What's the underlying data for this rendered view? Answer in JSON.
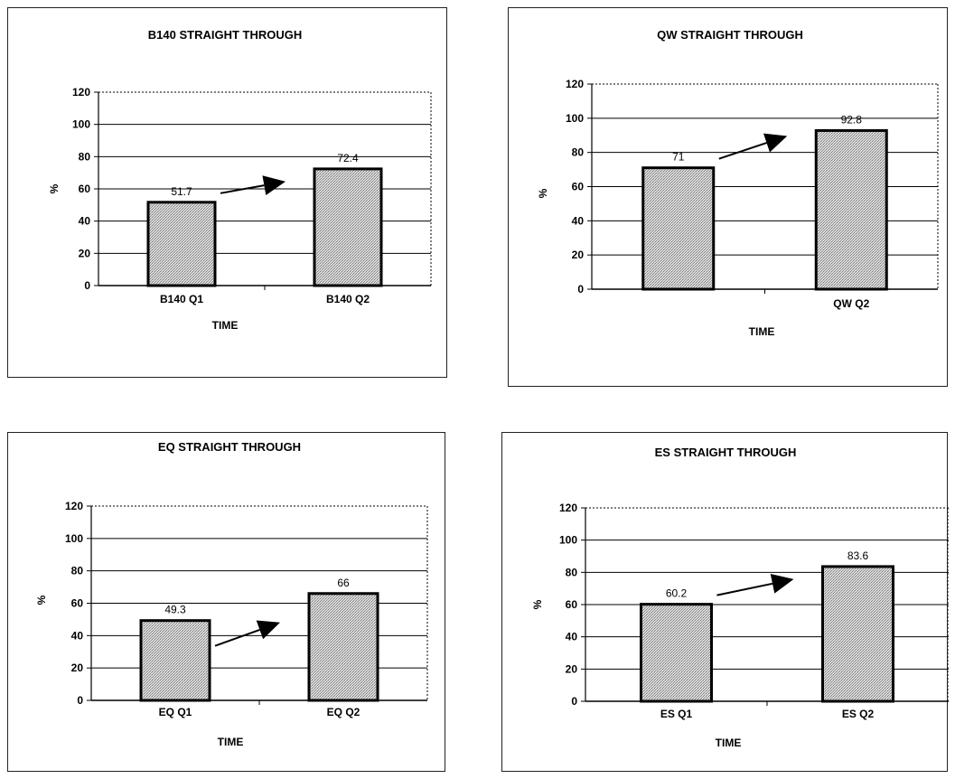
{
  "colors": {
    "bar_fill": "#c7c7c7",
    "bar_stroke": "#000000",
    "grid": "#000000",
    "arrow": "#000000"
  },
  "chart_data": [
    {
      "type": "bar",
      "title": "B140 STRAIGHT THROUGH",
      "xlabel": "TIME",
      "ylabel": "%",
      "categories": [
        "B140 Q1",
        "B140 Q2"
      ],
      "values": [
        51.7,
        72.4
      ],
      "value_labels": [
        "51.7",
        "72.4"
      ],
      "ylim": [
        0,
        120
      ],
      "yticks": [
        0,
        20,
        40,
        60,
        80,
        100,
        120
      ],
      "grid": true,
      "annotation": "arrow pointing upward from Q1 bar toward Q2 bar"
    },
    {
      "type": "bar",
      "title": "QW STRAIGHT THROUGH",
      "xlabel": "TIME",
      "ylabel": "%",
      "categories": [
        "",
        "QW Q2"
      ],
      "values": [
        71,
        92.8
      ],
      "value_labels": [
        "71",
        "92.8"
      ],
      "ylim": [
        0,
        120
      ],
      "yticks": [
        0,
        20,
        40,
        60,
        80,
        100,
        120
      ],
      "grid": true,
      "annotation": "arrow pointing upward from Q1 bar toward Q2 bar"
    },
    {
      "type": "bar",
      "title": "EQ STRAIGHT THROUGH",
      "xlabel": "TIME",
      "ylabel": "%",
      "categories": [
        "EQ Q1",
        "EQ Q2"
      ],
      "values": [
        49.3,
        66
      ],
      "value_labels": [
        "49.3",
        "66"
      ],
      "ylim": [
        0,
        120
      ],
      "yticks": [
        0,
        20,
        40,
        60,
        80,
        100,
        120
      ],
      "grid": true,
      "annotation": "arrow pointing upward from Q1 bar toward Q2 bar"
    },
    {
      "type": "bar",
      "title": "ES STRAIGHT  THROUGH",
      "xlabel": "TIME",
      "ylabel": "%",
      "categories": [
        "ES Q1",
        "ES Q2"
      ],
      "values": [
        60.2,
        83.6
      ],
      "value_labels": [
        "60.2",
        "83.6"
      ],
      "ylim": [
        0,
        120
      ],
      "yticks": [
        0,
        20,
        40,
        60,
        80,
        100,
        120
      ],
      "grid": true,
      "annotation": "arrow pointing upward from Q1 bar toward Q2 bar"
    }
  ]
}
